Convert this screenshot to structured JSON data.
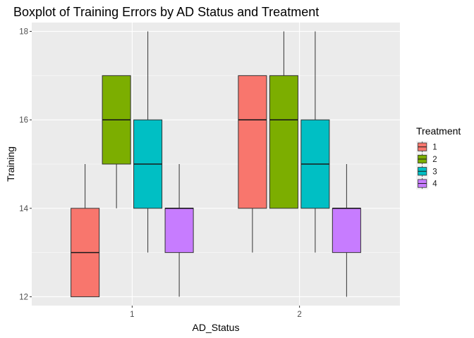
{
  "chart_data": {
    "type": "boxplot",
    "title": "Boxplot of Training Errors by AD Status and Treatment",
    "xlabel": "AD_Status",
    "ylabel": "Training",
    "categories": [
      "1",
      "2"
    ],
    "ylim": [
      11.8,
      18.2
    ],
    "yticks": [
      "12",
      "14",
      "16",
      "18"
    ],
    "ytick_values": [
      12,
      14,
      16,
      18
    ],
    "grid": true,
    "background": "#EBEBEB",
    "legend": {
      "title": "Treatment",
      "position": "right"
    },
    "series": [
      {
        "name": "1",
        "color": "#F8766D",
        "boxes": [
          {
            "category": "1",
            "min": 12,
            "q1": 12,
            "median": 13,
            "q3": 14,
            "max": 15
          },
          {
            "category": "2",
            "min": 13,
            "q1": 14,
            "median": 16,
            "q3": 17,
            "max": 17
          }
        ]
      },
      {
        "name": "2",
        "color": "#7CAE00",
        "boxes": [
          {
            "category": "1",
            "min": 14,
            "q1": 15,
            "median": 16,
            "q3": 17,
            "max": 17
          },
          {
            "category": "2",
            "min": 14,
            "q1": 14,
            "median": 16,
            "q3": 17,
            "max": 18
          }
        ]
      },
      {
        "name": "3",
        "color": "#00BFC4",
        "boxes": [
          {
            "category": "1",
            "min": 13,
            "q1": 14,
            "median": 15,
            "q3": 16,
            "max": 18
          },
          {
            "category": "2",
            "min": 13,
            "q1": 14,
            "median": 15,
            "q3": 16,
            "max": 18
          }
        ]
      },
      {
        "name": "4",
        "color": "#C77CFF",
        "boxes": [
          {
            "category": "1",
            "min": 12,
            "q1": 13,
            "median": 14,
            "q3": 14,
            "max": 15
          },
          {
            "category": "2",
            "min": 12,
            "q1": 13,
            "median": 14,
            "q3": 14,
            "max": 15
          }
        ]
      }
    ]
  }
}
